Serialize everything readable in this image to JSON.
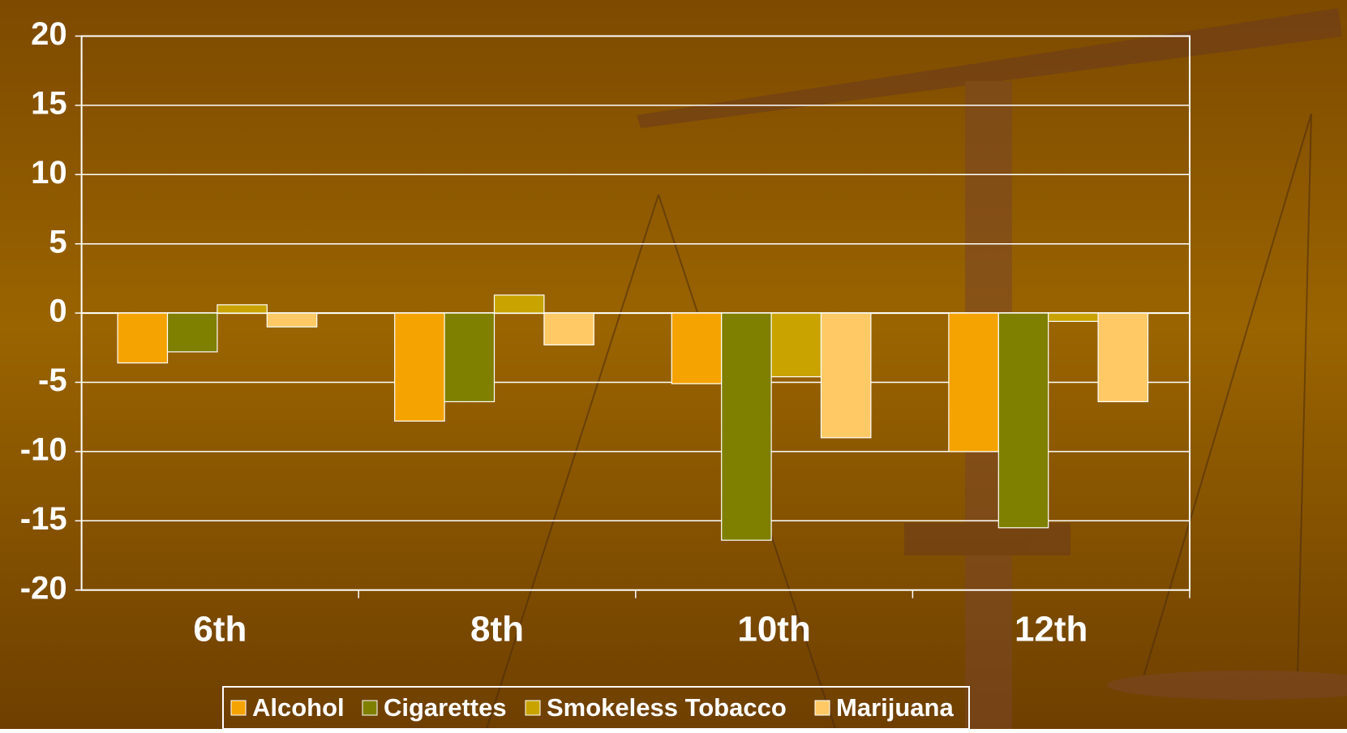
{
  "chart_data": {
    "type": "bar",
    "categories": [
      "6th",
      "8th",
      "10th",
      "12th"
    ],
    "series": [
      {
        "name": "Alcohol",
        "color": "#f5a300",
        "values": [
          -3.6,
          -7.8,
          -5.1,
          -10.0
        ]
      },
      {
        "name": "Cigarettes",
        "color": "#7f7f00",
        "values": [
          -2.8,
          -6.4,
          -16.4,
          -15.5
        ]
      },
      {
        "name": "Smokeless Tobacco",
        "color": "#c9a300",
        "values": [
          0.6,
          1.3,
          -4.6,
          -0.6
        ]
      },
      {
        "name": "Marijuana",
        "color": "#ffc966",
        "values": [
          -1.0,
          -2.3,
          -9.0,
          -6.4
        ]
      }
    ],
    "ylim": [
      -20,
      20
    ],
    "yticks": [
      -20,
      -15,
      -10,
      -5,
      0,
      5,
      10,
      15,
      20
    ],
    "grid": true,
    "legend": "bottom"
  }
}
